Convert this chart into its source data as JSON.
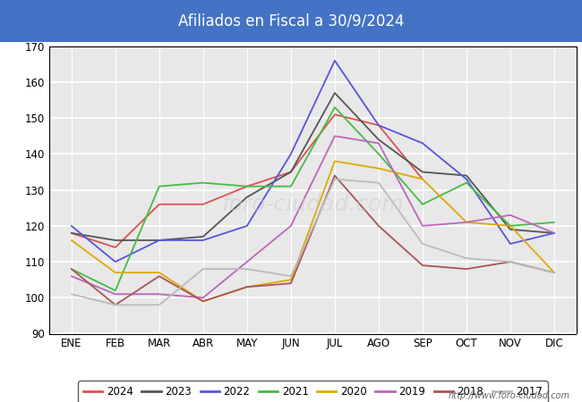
{
  "title": "Afiliados en Fiscal a 30/9/2024",
  "title_bg_color": "#4472c4",
  "title_text_color": "white",
  "ylim": [
    90,
    170
  ],
  "yticks": [
    90,
    100,
    110,
    120,
    130,
    140,
    150,
    160,
    170
  ],
  "months": [
    "ENE",
    "FEB",
    "MAR",
    "ABR",
    "MAY",
    "JUN",
    "JUL",
    "AGO",
    "SEP",
    "OCT",
    "NOV",
    "DIC"
  ],
  "watermark": "http://www.foro-ciudad.com",
  "plot_bg_color": "#e8e8e8",
  "grid_color": "white",
  "series": [
    {
      "label": "2024",
      "color": "#e05050",
      "data": [
        118,
        114,
        126,
        126,
        131,
        135,
        151,
        148,
        133,
        null,
        null,
        null
      ]
    },
    {
      "label": "2023",
      "color": "#555555",
      "data": [
        118,
        116,
        116,
        117,
        128,
        135,
        157,
        144,
        135,
        134,
        119,
        118
      ]
    },
    {
      "label": "2022",
      "color": "#5555dd",
      "data": [
        120,
        110,
        116,
        116,
        120,
        140,
        166,
        148,
        143,
        133,
        115,
        118
      ]
    },
    {
      "label": "2021",
      "color": "#44bb44",
      "data": [
        108,
        102,
        131,
        132,
        131,
        131,
        153,
        140,
        126,
        132,
        120,
        121
      ]
    },
    {
      "label": "2020",
      "color": "#ddaa00",
      "data": [
        116,
        107,
        107,
        99,
        103,
        105,
        138,
        136,
        133,
        121,
        120,
        107
      ]
    },
    {
      "label": "2019",
      "color": "#bb66bb",
      "data": [
        106,
        101,
        101,
        100,
        110,
        120,
        145,
        143,
        120,
        121,
        123,
        118
      ]
    },
    {
      "label": "2018",
      "color": "#aa5555",
      "data": [
        108,
        98,
        106,
        99,
        103,
        104,
        134,
        120,
        109,
        108,
        110,
        107
      ]
    },
    {
      "label": "2017",
      "color": "#bbbbbb",
      "data": [
        101,
        98,
        98,
        108,
        108,
        106,
        133,
        132,
        115,
        111,
        110,
        107
      ]
    }
  ]
}
